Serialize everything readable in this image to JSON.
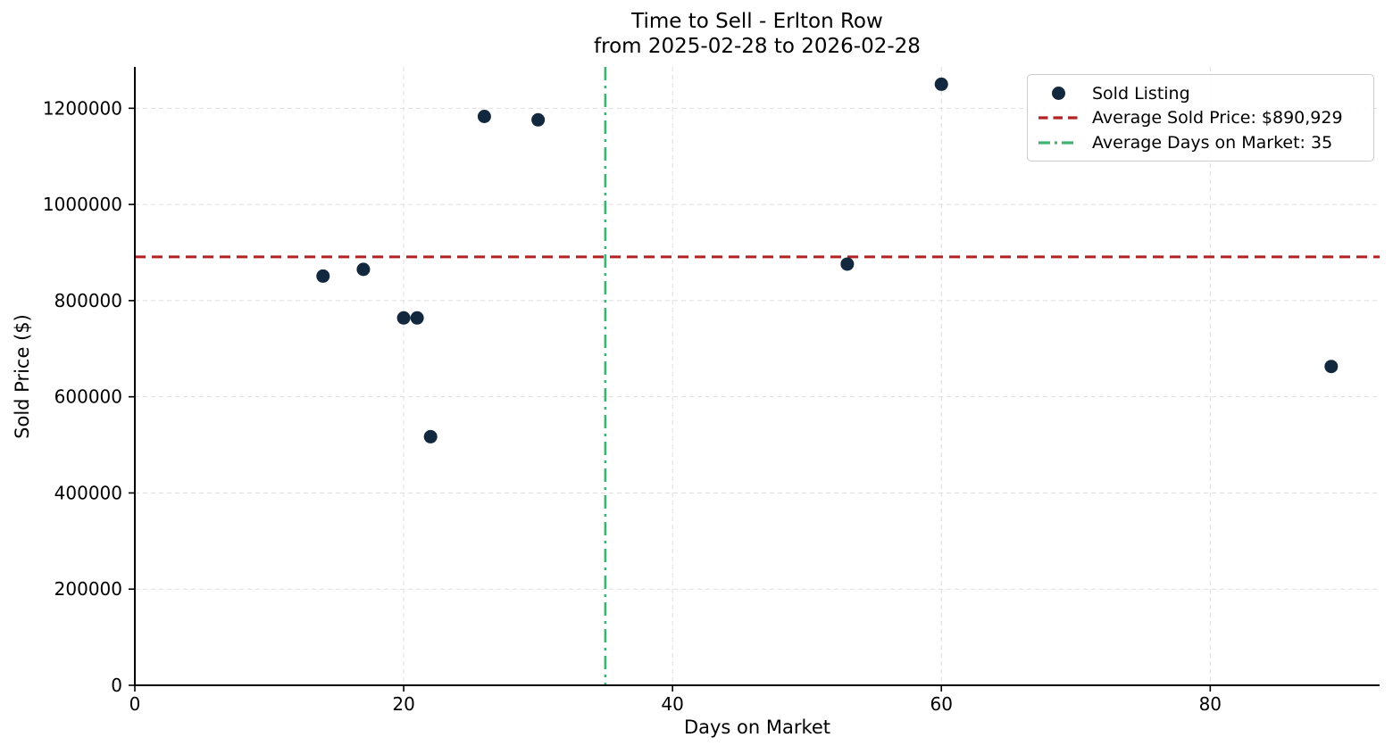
{
  "chart_data": {
    "type": "scatter",
    "title": "Time to Sell - Erlton Row",
    "subtitle": "from 2025-02-28 to 2026-02-28",
    "xlabel": "Days on Market",
    "ylabel": "Sold Price ($)",
    "xlim": [
      0,
      92.6
    ],
    "ylim": [
      0,
      1286000
    ],
    "xticks": [
      0,
      20,
      40,
      60,
      80
    ],
    "yticks": [
      0,
      200000,
      400000,
      600000,
      800000,
      1000000,
      1200000
    ],
    "grid": true,
    "legend_position": "upper-right",
    "points": [
      {
        "days_on_market": 14,
        "sold_price": 851000
      },
      {
        "days_on_market": 17,
        "sold_price": 865000
      },
      {
        "days_on_market": 20,
        "sold_price": 764000
      },
      {
        "days_on_market": 21,
        "sold_price": 764000
      },
      {
        "days_on_market": 22,
        "sold_price": 517000
      },
      {
        "days_on_market": 26,
        "sold_price": 1183000
      },
      {
        "days_on_market": 30,
        "sold_price": 1176000
      },
      {
        "days_on_market": 53,
        "sold_price": 876000
      },
      {
        "days_on_market": 60,
        "sold_price": 1250000
      },
      {
        "days_on_market": 89,
        "sold_price": 663000
      }
    ],
    "avg_sold_price": 890929,
    "avg_days_on_market": 35,
    "legend": [
      {
        "label": "Sold Listing",
        "marker": "dot"
      },
      {
        "label": "Average Sold Price: $890,929",
        "marker": "dashed-line"
      },
      {
        "label": "Average Days on Market: 35",
        "marker": "dashdot-line"
      }
    ],
    "colors": {
      "marker": "#12283f",
      "avg_price_line": "#b22222",
      "avg_days_line": "#3cb371",
      "grid": "#d9d9d9",
      "axis": "#000000",
      "text": "#000000",
      "legend_border": "#cccccc"
    }
  }
}
